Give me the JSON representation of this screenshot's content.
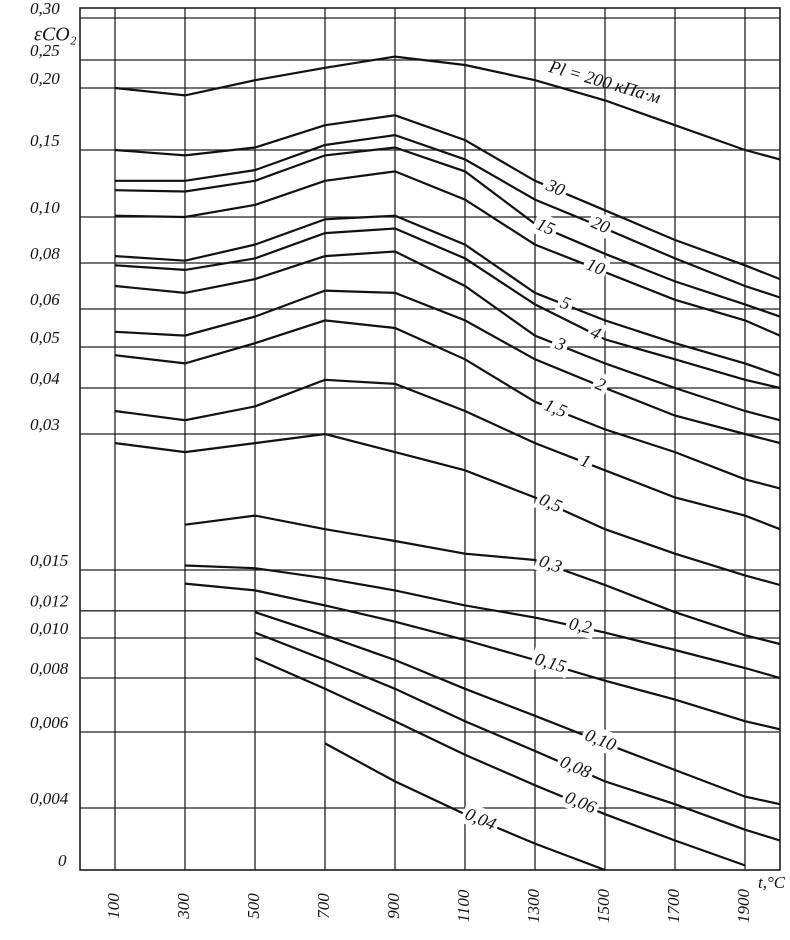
{
  "chart_data": {
    "type": "line",
    "y_label": "εCO₂",
    "x_label": "t,°C",
    "x": [
      100,
      300,
      500,
      700,
      900,
      1100,
      1300,
      1500,
      1700,
      1900,
      2000
    ],
    "xlim": [
      0,
      2000
    ],
    "xticks": [
      100,
      300,
      500,
      700,
      900,
      1100,
      1300,
      1500,
      1700,
      1900
    ],
    "ylim": [
      0,
      0.3
    ],
    "yticks": [
      {
        "value": 0.3,
        "label": "0,30"
      },
      {
        "value": 0.25,
        "label": "0,25"
      },
      {
        "value": 0.2,
        "label": "0,20"
      },
      {
        "value": 0.15,
        "label": "0,15"
      },
      {
        "value": 0.1,
        "label": "0,10"
      },
      {
        "value": 0.08,
        "label": "0,08"
      },
      {
        "value": 0.06,
        "label": "0,06"
      },
      {
        "value": 0.05,
        "label": "0,05"
      },
      {
        "value": 0.04,
        "label": "0,04"
      },
      {
        "value": 0.03,
        "label": "0,03"
      },
      {
        "value": 0.012,
        "label": "0,012"
      },
      {
        "value": 0.015,
        "label": "0,015"
      },
      {
        "value": 0.01,
        "label": "0,010"
      },
      {
        "value": 0.008,
        "label": "0,008"
      },
      {
        "value": 0.006,
        "label": "0,006"
      },
      {
        "value": 0.004,
        "label": "0,004"
      },
      0
    ],
    "grid": true,
    "color": "#111111",
    "series": [
      {
        "name": "Pl = 200 кПа·м",
        "values": [
          0.2,
          0.194,
          0.214,
          0.236,
          0.254,
          0.241,
          0.214,
          0.19,
          0.17,
          0.15,
          0.143
        ]
      },
      {
        "name": "30",
        "values": [
          0.15,
          0.146,
          0.152,
          0.17,
          0.178,
          0.158,
          0.127,
          0.105,
          0.09,
          0.079,
          0.073
        ]
      },
      {
        "name": "20",
        "values": [
          0.127,
          0.127,
          0.135,
          0.154,
          0.162,
          0.143,
          0.113,
          0.095,
          0.082,
          0.07,
          0.065
        ]
      },
      {
        "name": "15",
        "values": [
          0.12,
          0.119,
          0.127,
          0.146,
          0.152,
          0.134,
          0.097,
          0.084,
          0.072,
          0.062,
          0.058
        ]
      },
      {
        "name": "10",
        "values": [
          0.101,
          0.1,
          0.109,
          0.127,
          0.134,
          0.113,
          0.088,
          0.076,
          0.064,
          0.057,
          0.053
        ]
      },
      {
        "name": "5",
        "values": [
          0.083,
          0.081,
          0.088,
          0.099,
          0.101,
          0.088,
          0.067,
          0.057,
          0.051,
          0.046,
          0.043
        ]
      },
      {
        "name": "4",
        "values": [
          0.079,
          0.077,
          0.082,
          0.093,
          0.095,
          0.082,
          0.062,
          0.052,
          0.047,
          0.042,
          0.04
        ]
      },
      {
        "name": "3",
        "values": [
          0.07,
          0.067,
          0.073,
          0.083,
          0.085,
          0.07,
          0.053,
          0.046,
          0.04,
          0.035,
          0.033
        ]
      },
      {
        "name": "2",
        "values": [
          0.054,
          0.053,
          0.058,
          0.068,
          0.067,
          0.057,
          0.047,
          0.04,
          0.034,
          0.03,
          0.029
        ]
      },
      {
        "name": "1,5",
        "values": [
          0.048,
          0.046,
          0.051,
          0.057,
          0.055,
          0.047,
          0.037,
          0.031,
          0.028,
          0.025,
          0.024
        ]
      },
      {
        "name": "1",
        "values": [
          0.035,
          0.033,
          0.036,
          0.042,
          0.041,
          0.035,
          0.029,
          0.026,
          0.023,
          0.021,
          0.0195
        ]
      },
      {
        "name": "0,5",
        "values": [
          0.029,
          0.028,
          0.029,
          0.03,
          0.028,
          0.026,
          0.023,
          0.0195,
          0.0168,
          0.0146,
          0.0139
        ]
      },
      {
        "name": "0,3",
        "values": [
          null,
          0.02,
          0.021,
          0.0195,
          0.0182,
          0.0168,
          0.0161,
          0.0139,
          0.0119,
          0.0102,
          0.0097
        ]
      },
      {
        "name": "0,2",
        "values": [
          null,
          0.0155,
          0.0152,
          0.0144,
          0.0135,
          0.0124,
          0.0115,
          0.0104,
          0.0094,
          0.0085,
          0.008
        ]
      },
      {
        "name": "0,15",
        "values": [
          null,
          0.014,
          0.0135,
          0.0124,
          0.0112,
          0.0099,
          0.0089,
          0.0079,
          0.0072,
          0.0064,
          0.0061
        ]
      },
      {
        "name": "0,10",
        "values": [
          null,
          null,
          0.0119,
          0.0102,
          0.0089,
          0.0076,
          0.0066,
          0.0057,
          0.005,
          0.0043,
          0.0041
        ]
      },
      {
        "name": "0,08",
        "values": [
          null,
          null,
          0.0104,
          0.0089,
          0.0076,
          0.0064,
          0.0055,
          0.0047,
          0.0041,
          0.0026,
          0.0019
        ]
      },
      {
        "name": "0,06",
        "values": [
          null,
          null,
          0.009,
          0.0076,
          0.0064,
          0.0054,
          0.0046,
          0.0036,
          0.0019,
          0.0003,
          null
        ]
      },
      {
        "name": "0,04",
        "values": [
          null,
          null,
          null,
          0.0057,
          0.0047,
          0.0036,
          0.0017,
          0,
          null,
          null,
          null
        ]
      }
    ]
  }
}
